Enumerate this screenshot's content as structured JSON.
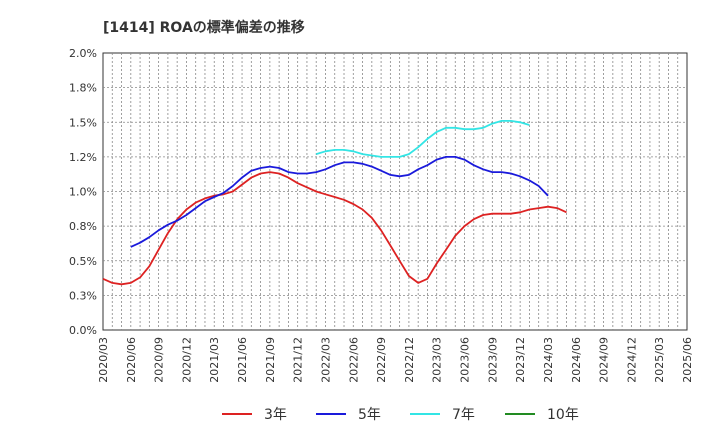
{
  "chart_data": {
    "type": "line",
    "title": "[1414]  ROAの標準偏差の推移",
    "xlabel": "",
    "ylabel": "",
    "y_ticks": [
      "0.0%",
      "0.3%",
      "0.5%",
      "0.8%",
      "1.0%",
      "1.2%",
      "1.5%",
      "1.8%",
      "2.0%"
    ],
    "ylim": [
      0,
      2.0
    ],
    "x_ticks": [
      "2020/03",
      "2020/06",
      "2020/09",
      "2020/12",
      "2021/03",
      "2021/06",
      "2021/09",
      "2021/12",
      "2022/03",
      "2022/06",
      "2022/09",
      "2022/12",
      "2023/03",
      "2023/06",
      "2023/09",
      "2023/12",
      "2024/03",
      "2024/06",
      "2024/09",
      "2024/12",
      "2025/03",
      "2025/06"
    ],
    "grid": true,
    "legend_position": "bottom",
    "series": [
      {
        "name": "3年",
        "color": "#dd2222",
        "start_index": 0,
        "values": [
          0.37,
          0.34,
          0.33,
          0.34,
          0.38,
          0.46,
          0.58,
          0.7,
          0.8,
          0.87,
          0.92,
          0.95,
          0.97,
          0.98,
          1.0,
          1.05,
          1.1,
          1.13,
          1.14,
          1.13,
          1.1,
          1.06,
          1.03,
          1.0,
          0.98,
          0.96,
          0.94,
          0.91,
          0.87,
          0.81,
          0.72,
          0.61,
          0.5,
          0.39,
          0.34,
          0.37,
          0.48,
          0.58,
          0.68,
          0.75,
          0.8,
          0.83,
          0.84,
          0.84,
          0.84,
          0.85,
          0.87,
          0.88,
          0.89,
          0.88,
          0.85
        ]
      },
      {
        "name": "5年",
        "color": "#1a1adb",
        "start_index": 3,
        "values": [
          0.6,
          0.63,
          0.67,
          0.72,
          0.76,
          0.79,
          0.83,
          0.88,
          0.93,
          0.96,
          0.99,
          1.04,
          1.1,
          1.15,
          1.17,
          1.18,
          1.17,
          1.14,
          1.13,
          1.13,
          1.14,
          1.16,
          1.19,
          1.21,
          1.21,
          1.2,
          1.18,
          1.15,
          1.12,
          1.11,
          1.12,
          1.16,
          1.19,
          1.23,
          1.25,
          1.25,
          1.23,
          1.19,
          1.16,
          1.14,
          1.14,
          1.13,
          1.11,
          1.08,
          1.04,
          0.97
        ]
      },
      {
        "name": "7年",
        "color": "#33e5e5",
        "start_index": 23,
        "values": [
          1.27,
          1.29,
          1.3,
          1.3,
          1.29,
          1.27,
          1.26,
          1.25,
          1.25,
          1.25,
          1.27,
          1.32,
          1.38,
          1.43,
          1.46,
          1.46,
          1.45,
          1.45,
          1.46,
          1.49,
          1.51,
          1.51,
          1.5,
          1.48
        ]
      },
      {
        "name": "10年",
        "color": "#228b22",
        "start_index": 0,
        "values": []
      }
    ]
  }
}
